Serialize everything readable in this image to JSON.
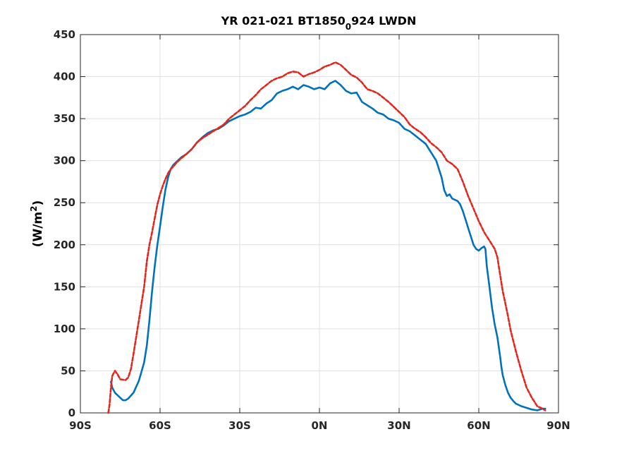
{
  "chart_data": {
    "type": "line",
    "title_main": "YR 021-021 BT1850",
    "title_sub": "0",
    "title_tail": "924 LWDN",
    "xlabel": "",
    "ylabel_main": "(W/m",
    "ylabel_sup": "2",
    "ylabel_tail": ")",
    "xlim": [
      -90,
      90
    ],
    "ylim": [
      0,
      450
    ],
    "xticks": [
      -90,
      -60,
      -30,
      0,
      30,
      60,
      90
    ],
    "xtick_labels": [
      "90S",
      "60S",
      "30S",
      "0N",
      "30N",
      "60N",
      "90N"
    ],
    "yticks": [
      0,
      50,
      100,
      150,
      200,
      250,
      300,
      350,
      400,
      450
    ],
    "ytick_labels": [
      "0",
      "50",
      "100",
      "150",
      "200",
      "250",
      "300",
      "350",
      "400",
      "450"
    ],
    "grid": true,
    "series": [
      {
        "color": "#0072bd",
        "style": "solid",
        "x": [
          -78.5,
          -78,
          -77,
          -75,
          -74,
          -73,
          -72,
          -70,
          -68,
          -66,
          -65,
          -64,
          -63,
          -62,
          -61,
          -60,
          -59,
          -58,
          -57,
          -56,
          -55,
          -54,
          -52,
          -50,
          -48,
          -46,
          -44,
          -42,
          -40,
          -38,
          -36,
          -34,
          -32,
          -30,
          -28,
          -26,
          -24,
          -22,
          -20,
          -18,
          -16,
          -14,
          -12,
          -10,
          -8,
          -6,
          -4,
          -2,
          0,
          2,
          4,
          6,
          8,
          10,
          12,
          14,
          16,
          18,
          20,
          22,
          24,
          26,
          28,
          30,
          32,
          34,
          36,
          38,
          40,
          42,
          44,
          46,
          47,
          48,
          49,
          50,
          52,
          53,
          54,
          55,
          56,
          57,
          58,
          59,
          60,
          61,
          62,
          62.5,
          63,
          64,
          65,
          66,
          67,
          68,
          68.5,
          69,
          70,
          71,
          72,
          73,
          74,
          76,
          78,
          80,
          82,
          84,
          85
        ],
        "y": [
          37,
          30,
          24,
          18,
          15,
          15,
          17,
          24,
          38,
          60,
          80,
          110,
          145,
          175,
          200,
          222,
          245,
          265,
          280,
          290,
          295,
          298,
          304,
          308,
          314,
          322,
          328,
          333,
          336,
          338,
          342,
          347,
          350,
          353,
          355,
          358,
          363,
          362,
          368,
          372,
          380,
          383,
          385,
          388,
          385,
          390,
          388,
          385,
          387,
          385,
          392,
          395,
          390,
          383,
          380,
          381,
          370,
          366,
          362,
          357,
          355,
          350,
          348,
          345,
          338,
          335,
          330,
          325,
          320,
          310,
          300,
          280,
          265,
          258,
          260,
          255,
          252,
          248,
          240,
          230,
          220,
          210,
          200,
          195,
          193,
          196,
          198,
          195,
          175,
          150,
          125,
          105,
          90,
          68,
          55,
          45,
          33,
          24,
          18,
          14,
          11,
          8,
          6,
          4,
          3,
          5,
          5
        ]
      },
      {
        "color": "#e3261c",
        "style": "dashed",
        "x": [
          -79.5,
          -79,
          -78.5,
          -78,
          -77,
          -76,
          -75,
          -73,
          -72,
          -71,
          -70,
          -69,
          -68,
          -67,
          -66,
          -65,
          -64,
          -63,
          -62,
          -61,
          -60,
          -59,
          -58,
          -57,
          -56,
          -55,
          -54,
          -52,
          -50,
          -48,
          -46,
          -44,
          -42,
          -40,
          -38,
          -36,
          -34,
          -32,
          -30,
          -28,
          -26,
          -24,
          -22,
          -20,
          -18,
          -16,
          -14,
          -12,
          -10,
          -8,
          -6,
          -4,
          -2,
          0,
          2,
          4,
          6,
          8,
          10,
          12,
          14,
          16,
          18,
          20,
          22,
          24,
          26,
          28,
          30,
          32,
          34,
          36,
          38,
          40,
          42,
          44,
          46,
          48,
          50,
          52,
          54,
          56,
          58,
          60,
          62,
          64,
          66,
          67,
          68,
          69,
          70,
          71,
          72,
          74,
          76,
          78,
          80,
          82,
          84,
          85
        ],
        "y": [
          0,
          10,
          30,
          44,
          50,
          46,
          40,
          39,
          42,
          52,
          70,
          90,
          110,
          130,
          150,
          180,
          200,
          215,
          232,
          248,
          260,
          270,
          278,
          285,
          290,
          293,
          297,
          303,
          308,
          314,
          322,
          327,
          331,
          335,
          339,
          343,
          350,
          355,
          360,
          365,
          372,
          378,
          385,
          390,
          395,
          398,
          400,
          404,
          406,
          405,
          400,
          403,
          405,
          408,
          412,
          414,
          417,
          414,
          408,
          402,
          399,
          393,
          385,
          383,
          380,
          375,
          370,
          364,
          358,
          352,
          343,
          338,
          334,
          328,
          321,
          316,
          310,
          300,
          296,
          290,
          275,
          258,
          243,
          228,
          215,
          205,
          195,
          185,
          165,
          145,
          130,
          115,
          98,
          73,
          50,
          30,
          18,
          8,
          5,
          3
        ]
      }
    ]
  }
}
